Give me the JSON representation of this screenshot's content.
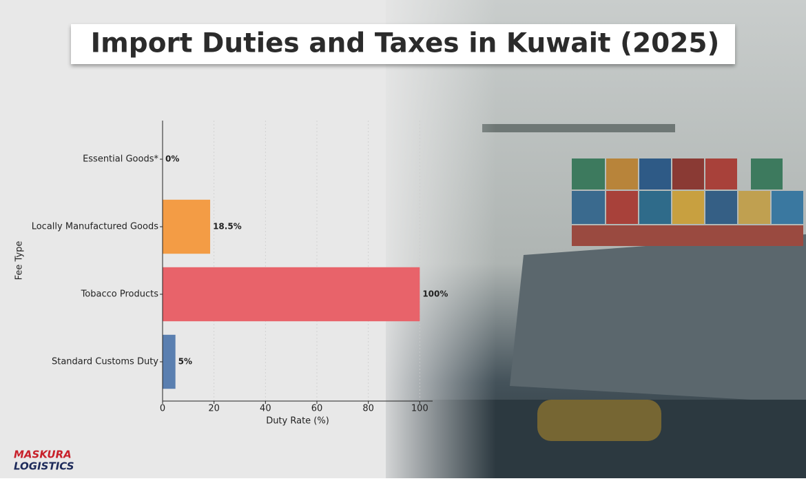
{
  "chart_data": {
    "type": "barh",
    "title": "Import Duties and Taxes in Kuwait (2025)",
    "categories": [
      "Essential Goods*",
      "Locally Manufactured Goods",
      "Tobacco Products",
      "Standard Customs Duty"
    ],
    "values": [
      0,
      18.5,
      100,
      5
    ],
    "value_labels": [
      "0%",
      "18.5%",
      "100%",
      "5%"
    ],
    "colors": [
      "#5a7fb0",
      "#f39c45",
      "#e8636a",
      "#5a7fb0"
    ],
    "xlabel": "Duty Rate (%)",
    "ylabel": "Fee Type",
    "xlim": [
      0,
      105
    ],
    "xticks": [
      0,
      20,
      40,
      60,
      80,
      100
    ],
    "grid": true
  },
  "logo": {
    "line1": "MASKURA",
    "line2": "LOGISTICS"
  }
}
